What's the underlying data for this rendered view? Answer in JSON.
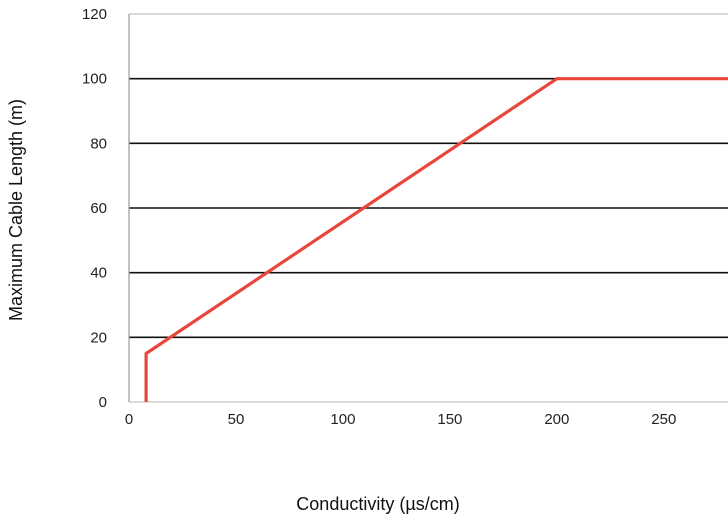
{
  "chart_data": {
    "type": "line",
    "title": "",
    "xlabel": "Conductivity (µs/cm)",
    "ylabel": "Maximum Cable Length (m)",
    "xlim": [
      0,
      280
    ],
    "ylim": [
      0,
      120
    ],
    "x_ticks": [
      0,
      50,
      100,
      150,
      200,
      250
    ],
    "y_ticks": [
      0,
      20,
      40,
      60,
      80,
      100,
      120
    ],
    "grid": "horizontal",
    "series": [
      {
        "color": "#e8463a",
        "points": [
          {
            "x": 8,
            "y": 0
          },
          {
            "x": 8,
            "y": 15
          },
          {
            "x": 200,
            "y": 100
          },
          {
            "x": 280,
            "y": 100
          }
        ]
      }
    ]
  }
}
